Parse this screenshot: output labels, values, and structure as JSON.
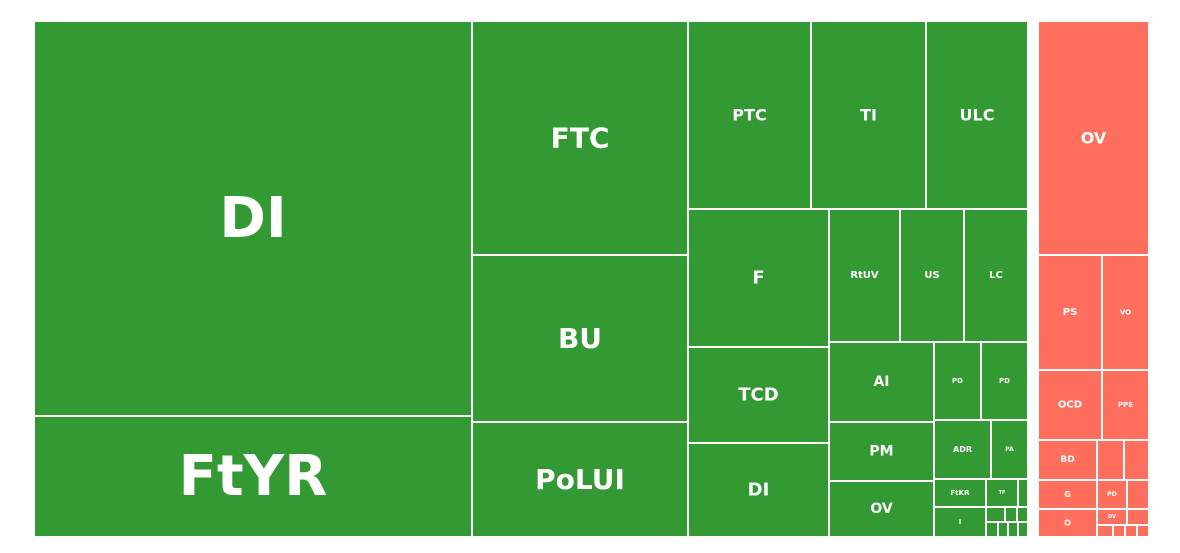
{
  "chart_data": {
    "type": "treemap",
    "title": "",
    "colors": {
      "positive": "#339933",
      "negative": "#ff6f5e",
      "border": "#ffffff"
    },
    "groups": [
      {
        "sign": "positive",
        "items": [
          {
            "label": "DI"
          },
          {
            "label": "FtYR"
          },
          {
            "label": "FTC"
          },
          {
            "label": "BU"
          },
          {
            "label": "PoLUI"
          },
          {
            "label": "PTC"
          },
          {
            "label": "TI"
          },
          {
            "label": "ULC"
          },
          {
            "label": "F"
          },
          {
            "label": "RtUV"
          },
          {
            "label": "US"
          },
          {
            "label": "LC"
          },
          {
            "label": "TCD"
          },
          {
            "label": "DI"
          },
          {
            "label": "AI"
          },
          {
            "label": "PD"
          },
          {
            "label": "PD"
          },
          {
            "label": "PM"
          },
          {
            "label": "ADR"
          },
          {
            "label": "PA"
          },
          {
            "label": "OV"
          },
          {
            "label": "FtKR"
          },
          {
            "label": "TF"
          },
          {
            "label": "I"
          }
        ]
      },
      {
        "sign": "negative",
        "items": [
          {
            "label": "OV"
          },
          {
            "label": "PS"
          },
          {
            "label": "VO"
          },
          {
            "label": "OCD"
          },
          {
            "label": "PPE"
          },
          {
            "label": "BD"
          },
          {
            "label": "G"
          },
          {
            "label": "PD"
          },
          {
            "label": "O"
          },
          {
            "label": "DV"
          }
        ]
      }
    ]
  }
}
